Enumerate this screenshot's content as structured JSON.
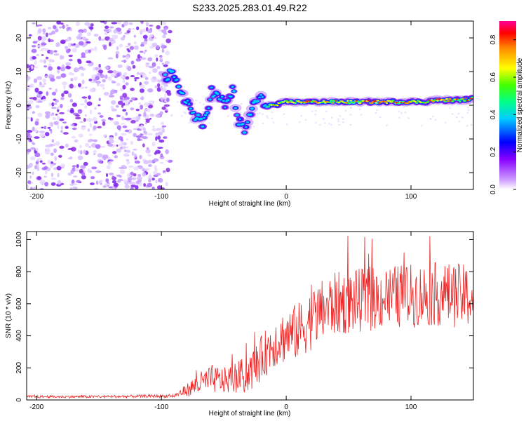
{
  "title": "S233.2025.283.01.49.R22",
  "chart_data": [
    {
      "type": "heatmap",
      "xlabel": "Height of straight line (km)",
      "ylabel": "Frequency (Hz)",
      "xlim": [
        -208,
        150
      ],
      "ylim": [
        -25,
        25
      ],
      "xticks": [
        -200,
        -100,
        0,
        100
      ],
      "yticks": [
        20,
        10,
        0,
        -10,
        -20
      ],
      "colorbar": {
        "label": "Normalized spectral amplitude",
        "range": [
          0,
          0.9
        ],
        "ticks": [
          "0.0",
          "0.2",
          "0.4",
          "0.6",
          "0.8"
        ]
      },
      "ridge": {
        "x": [
          -97,
          -92,
          -87,
          -82,
          -77,
          -72,
          -67,
          -60,
          -54,
          -48,
          -43,
          -38,
          -33,
          -28,
          -22,
          -15,
          -8,
          0,
          10,
          20,
          30,
          40,
          50,
          60,
          70,
          80,
          90,
          100,
          110,
          120,
          130,
          140,
          150
        ],
        "frequency": [
          8,
          9,
          6,
          3,
          -1,
          -4,
          -6,
          4,
          2,
          0,
          5,
          -5,
          -8,
          -1,
          2,
          0,
          0,
          1,
          1,
          1,
          1,
          1,
          1,
          1,
          1,
          1,
          1,
          1,
          1,
          1.5,
          1.5,
          1.5,
          2
        ]
      }
    },
    {
      "type": "line",
      "xlabel": "Height of straight line (km)",
      "ylabel": "SNR (10 * v/v)",
      "xlim": [
        -208,
        150
      ],
      "ylim": [
        0,
        1050
      ],
      "xticks": [
        -200,
        -100,
        0,
        100
      ],
      "yticks": [
        0,
        200,
        400,
        600,
        800,
        1000
      ],
      "series": [
        {
          "name": "SNR",
          "color": "#ee2222",
          "envelope": {
            "x": [
              -208,
              -150,
              -90,
              -80,
              -70,
              -60,
              -50,
              -40,
              -30,
              -20,
              -10,
              0,
              10,
              20,
              30,
              40,
              60,
              80,
              100,
              120,
              140,
              150
            ],
            "mean": [
              20,
              20,
              25,
              60,
              100,
              130,
              120,
              140,
              160,
              260,
              360,
              400,
              430,
              500,
              560,
              600,
              620,
              640,
              650,
              660,
              650,
              640
            ],
            "spread": [
              8,
              8,
              10,
              40,
              70,
              90,
              80,
              100,
              120,
              140,
              160,
              170,
              180,
              190,
              200,
              200,
              200,
              200,
              200,
              200,
              200,
              200
            ]
          }
        }
      ]
    }
  ]
}
